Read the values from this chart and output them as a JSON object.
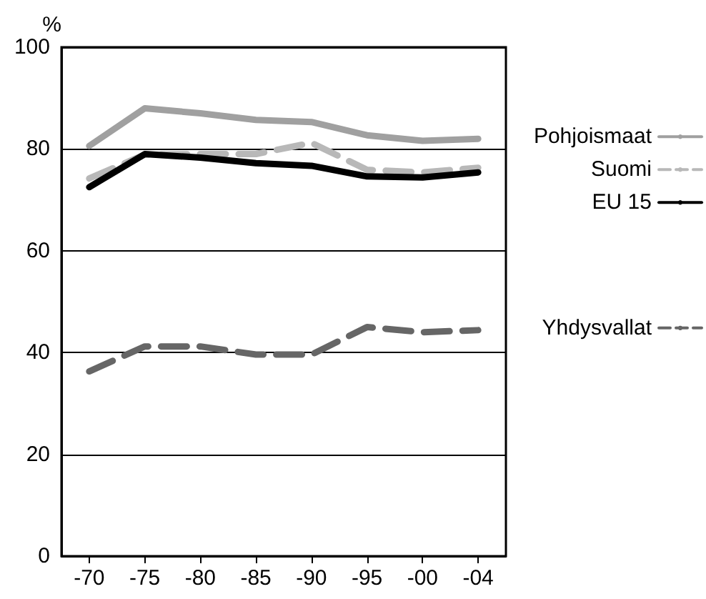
{
  "chart_data": {
    "type": "line",
    "ylabel": "%",
    "categories": [
      "-70",
      "-75",
      "-80",
      "-85",
      "-90",
      "-95",
      "-00",
      "-04"
    ],
    "ylim": [
      0,
      100
    ],
    "yticks": [
      0,
      20,
      40,
      60,
      80,
      100
    ],
    "grid": "y",
    "legend": "right",
    "marker": "none",
    "series": [
      {
        "name": "Pohjoismaat",
        "color": "#a0a0a0",
        "line_style": "solid",
        "values": [
          80.6,
          88,
          87,
          85.7,
          85.3,
          82.7,
          81.6,
          82
        ]
      },
      {
        "name": "Suomi",
        "color": "#b8b8b8",
        "line_style": "dashed",
        "values": [
          74.2,
          78.9,
          79,
          79,
          81.2,
          75.9,
          75.4,
          76.3
        ]
      },
      {
        "name": "EU 15",
        "color": "#000000",
        "line_style": "solid",
        "values": [
          72.5,
          79,
          78.3,
          77.2,
          76.7,
          74.6,
          74.4,
          75.4
        ]
      },
      {
        "name": "Yhdysvallat",
        "color": "#666666",
        "line_style": "dashed",
        "values": [
          36.3,
          41.2,
          41.2,
          39.6,
          39.6,
          45,
          44,
          44.4
        ]
      }
    ]
  }
}
